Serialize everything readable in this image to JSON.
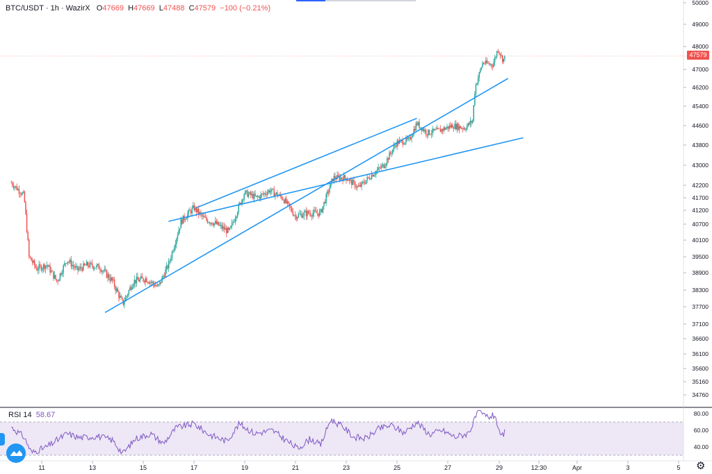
{
  "legend": {
    "symbol": "BTC/USDT · 1h · WazirX",
    "open_label": "O",
    "open": "47669",
    "high_label": "H",
    "high": "47669",
    "low_label": "L",
    "low": "47488",
    "close_label": "C",
    "close": "47579",
    "change": "−100 (−0.21%)"
  },
  "last_price": "47579",
  "rsi": {
    "label": "RSI 14",
    "value": "58.67"
  },
  "colors": {
    "up": "#26a69a",
    "down": "#ef5350",
    "channel": "#2196f3",
    "rsi": "#7e57c2",
    "rsi_band": "#ede7f6"
  },
  "icons": {
    "settings": "gear-icon",
    "logo": "tradingview-logo-icon"
  },
  "chart_data": [
    {
      "type": "candlestick",
      "title": "BTC/USDT · 1h · WazirX",
      "price_axis_ticks": [
        "50000",
        "49000",
        "48000",
        "47000",
        "46200",
        "45400",
        "44600",
        "43800",
        "43000",
        "42200",
        "41700",
        "41200",
        "40700",
        "40100",
        "39500",
        "38900",
        "38300",
        "37700",
        "37100",
        "36600",
        "36100",
        "35600",
        "35160",
        "34760"
      ],
      "time_axis_ticks": [
        "11",
        "13",
        "15",
        "17",
        "19",
        "21",
        "23",
        "25",
        "27",
        "29",
        "12:30",
        "Apr",
        "3",
        "5"
      ],
      "ylim": [
        34400,
        50000
      ],
      "grid": false,
      "price_path": [
        {
          "day": 9.8,
          "price": 42300
        },
        {
          "day": 10.0,
          "price": 42100
        },
        {
          "day": 10.3,
          "price": 41800
        },
        {
          "day": 10.5,
          "price": 39500
        },
        {
          "day": 10.8,
          "price": 39050
        },
        {
          "day": 11.2,
          "price": 39200
        },
        {
          "day": 11.6,
          "price": 38600
        },
        {
          "day": 12.0,
          "price": 39400
        },
        {
          "day": 12.4,
          "price": 39000
        },
        {
          "day": 12.8,
          "price": 39200
        },
        {
          "day": 13.3,
          "price": 39100
        },
        {
          "day": 13.8,
          "price": 38600
        },
        {
          "day": 14.2,
          "price": 37800
        },
        {
          "day": 14.6,
          "price": 38600
        },
        {
          "day": 15.1,
          "price": 38700
        },
        {
          "day": 15.6,
          "price": 38400
        },
        {
          "day": 16.0,
          "price": 39200
        },
        {
          "day": 16.5,
          "price": 40800
        },
        {
          "day": 17.0,
          "price": 41300
        },
        {
          "day": 17.4,
          "price": 40900
        },
        {
          "day": 17.9,
          "price": 40700
        },
        {
          "day": 18.4,
          "price": 40400
        },
        {
          "day": 19.0,
          "price": 41900
        },
        {
          "day": 19.5,
          "price": 41700
        },
        {
          "day": 20.0,
          "price": 42000
        },
        {
          "day": 20.5,
          "price": 41700
        },
        {
          "day": 21.0,
          "price": 41000
        },
        {
          "day": 21.5,
          "price": 41100
        },
        {
          "day": 22.0,
          "price": 41100
        },
        {
          "day": 22.5,
          "price": 42500
        },
        {
          "day": 23.0,
          "price": 42500
        },
        {
          "day": 23.5,
          "price": 42100
        },
        {
          "day": 24.0,
          "price": 42600
        },
        {
          "day": 24.5,
          "price": 43000
        },
        {
          "day": 25.0,
          "price": 43900
        },
        {
          "day": 25.5,
          "price": 44000
        },
        {
          "day": 25.8,
          "price": 44700
        },
        {
          "day": 26.2,
          "price": 44300
        },
        {
          "day": 26.7,
          "price": 44400
        },
        {
          "day": 27.2,
          "price": 44600
        },
        {
          "day": 27.7,
          "price": 44500
        },
        {
          "day": 28.0,
          "price": 44800
        },
        {
          "day": 28.1,
          "price": 46200
        },
        {
          "day": 28.4,
          "price": 47300
        },
        {
          "day": 28.8,
          "price": 47200
        },
        {
          "day": 29.0,
          "price": 47900
        },
        {
          "day": 29.2,
          "price": 47400
        },
        {
          "day": 29.3,
          "price": 47579
        }
      ],
      "channel_lines": [
        {
          "points": [
            {
              "day": 13.5,
              "price": 37500
            },
            {
              "day": 29.4,
              "price": 46600
            }
          ]
        },
        {
          "points": [
            {
              "day": 16.0,
              "price": 40800
            },
            {
              "day": 30.0,
              "price": 44100
            }
          ]
        },
        {
          "points": [
            {
              "day": 17.1,
              "price": 41300
            },
            {
              "day": 25.8,
              "price": 44900
            }
          ]
        }
      ]
    },
    {
      "type": "line",
      "title": "RSI 14",
      "ylim": [
        30,
        90
      ],
      "y_ticks": [
        "80.00",
        "60.00",
        "40.00"
      ],
      "bands": [
        70,
        30
      ],
      "last_value": 58.67,
      "series": [
        {
          "day": 9.8,
          "value": 64
        },
        {
          "day": 10.3,
          "value": 52
        },
        {
          "day": 10.6,
          "value": 33
        },
        {
          "day": 11.2,
          "value": 40
        },
        {
          "day": 12.0,
          "value": 56
        },
        {
          "day": 12.5,
          "value": 51
        },
        {
          "day": 13.2,
          "value": 53
        },
        {
          "day": 13.8,
          "value": 48
        },
        {
          "day": 14.2,
          "value": 32
        },
        {
          "day": 14.7,
          "value": 50
        },
        {
          "day": 15.3,
          "value": 56
        },
        {
          "day": 15.8,
          "value": 44
        },
        {
          "day": 16.3,
          "value": 63
        },
        {
          "day": 17.0,
          "value": 68
        },
        {
          "day": 17.6,
          "value": 55
        },
        {
          "day": 18.3,
          "value": 47
        },
        {
          "day": 18.8,
          "value": 68
        },
        {
          "day": 19.4,
          "value": 56
        },
        {
          "day": 20.1,
          "value": 60
        },
        {
          "day": 20.6,
          "value": 49
        },
        {
          "day": 21.1,
          "value": 38
        },
        {
          "day": 21.6,
          "value": 50
        },
        {
          "day": 22.0,
          "value": 42
        },
        {
          "day": 22.4,
          "value": 73
        },
        {
          "day": 22.9,
          "value": 64
        },
        {
          "day": 23.3,
          "value": 52
        },
        {
          "day": 23.8,
          "value": 50
        },
        {
          "day": 24.3,
          "value": 62
        },
        {
          "day": 24.8,
          "value": 66
        },
        {
          "day": 25.3,
          "value": 57
        },
        {
          "day": 25.8,
          "value": 70
        },
        {
          "day": 26.3,
          "value": 55
        },
        {
          "day": 26.8,
          "value": 60
        },
        {
          "day": 27.3,
          "value": 52
        },
        {
          "day": 27.8,
          "value": 56
        },
        {
          "day": 28.0,
          "value": 66
        },
        {
          "day": 28.2,
          "value": 82
        },
        {
          "day": 28.6,
          "value": 76
        },
        {
          "day": 28.9,
          "value": 78
        },
        {
          "day": 29.1,
          "value": 50
        },
        {
          "day": 29.3,
          "value": 58.67
        }
      ]
    }
  ]
}
